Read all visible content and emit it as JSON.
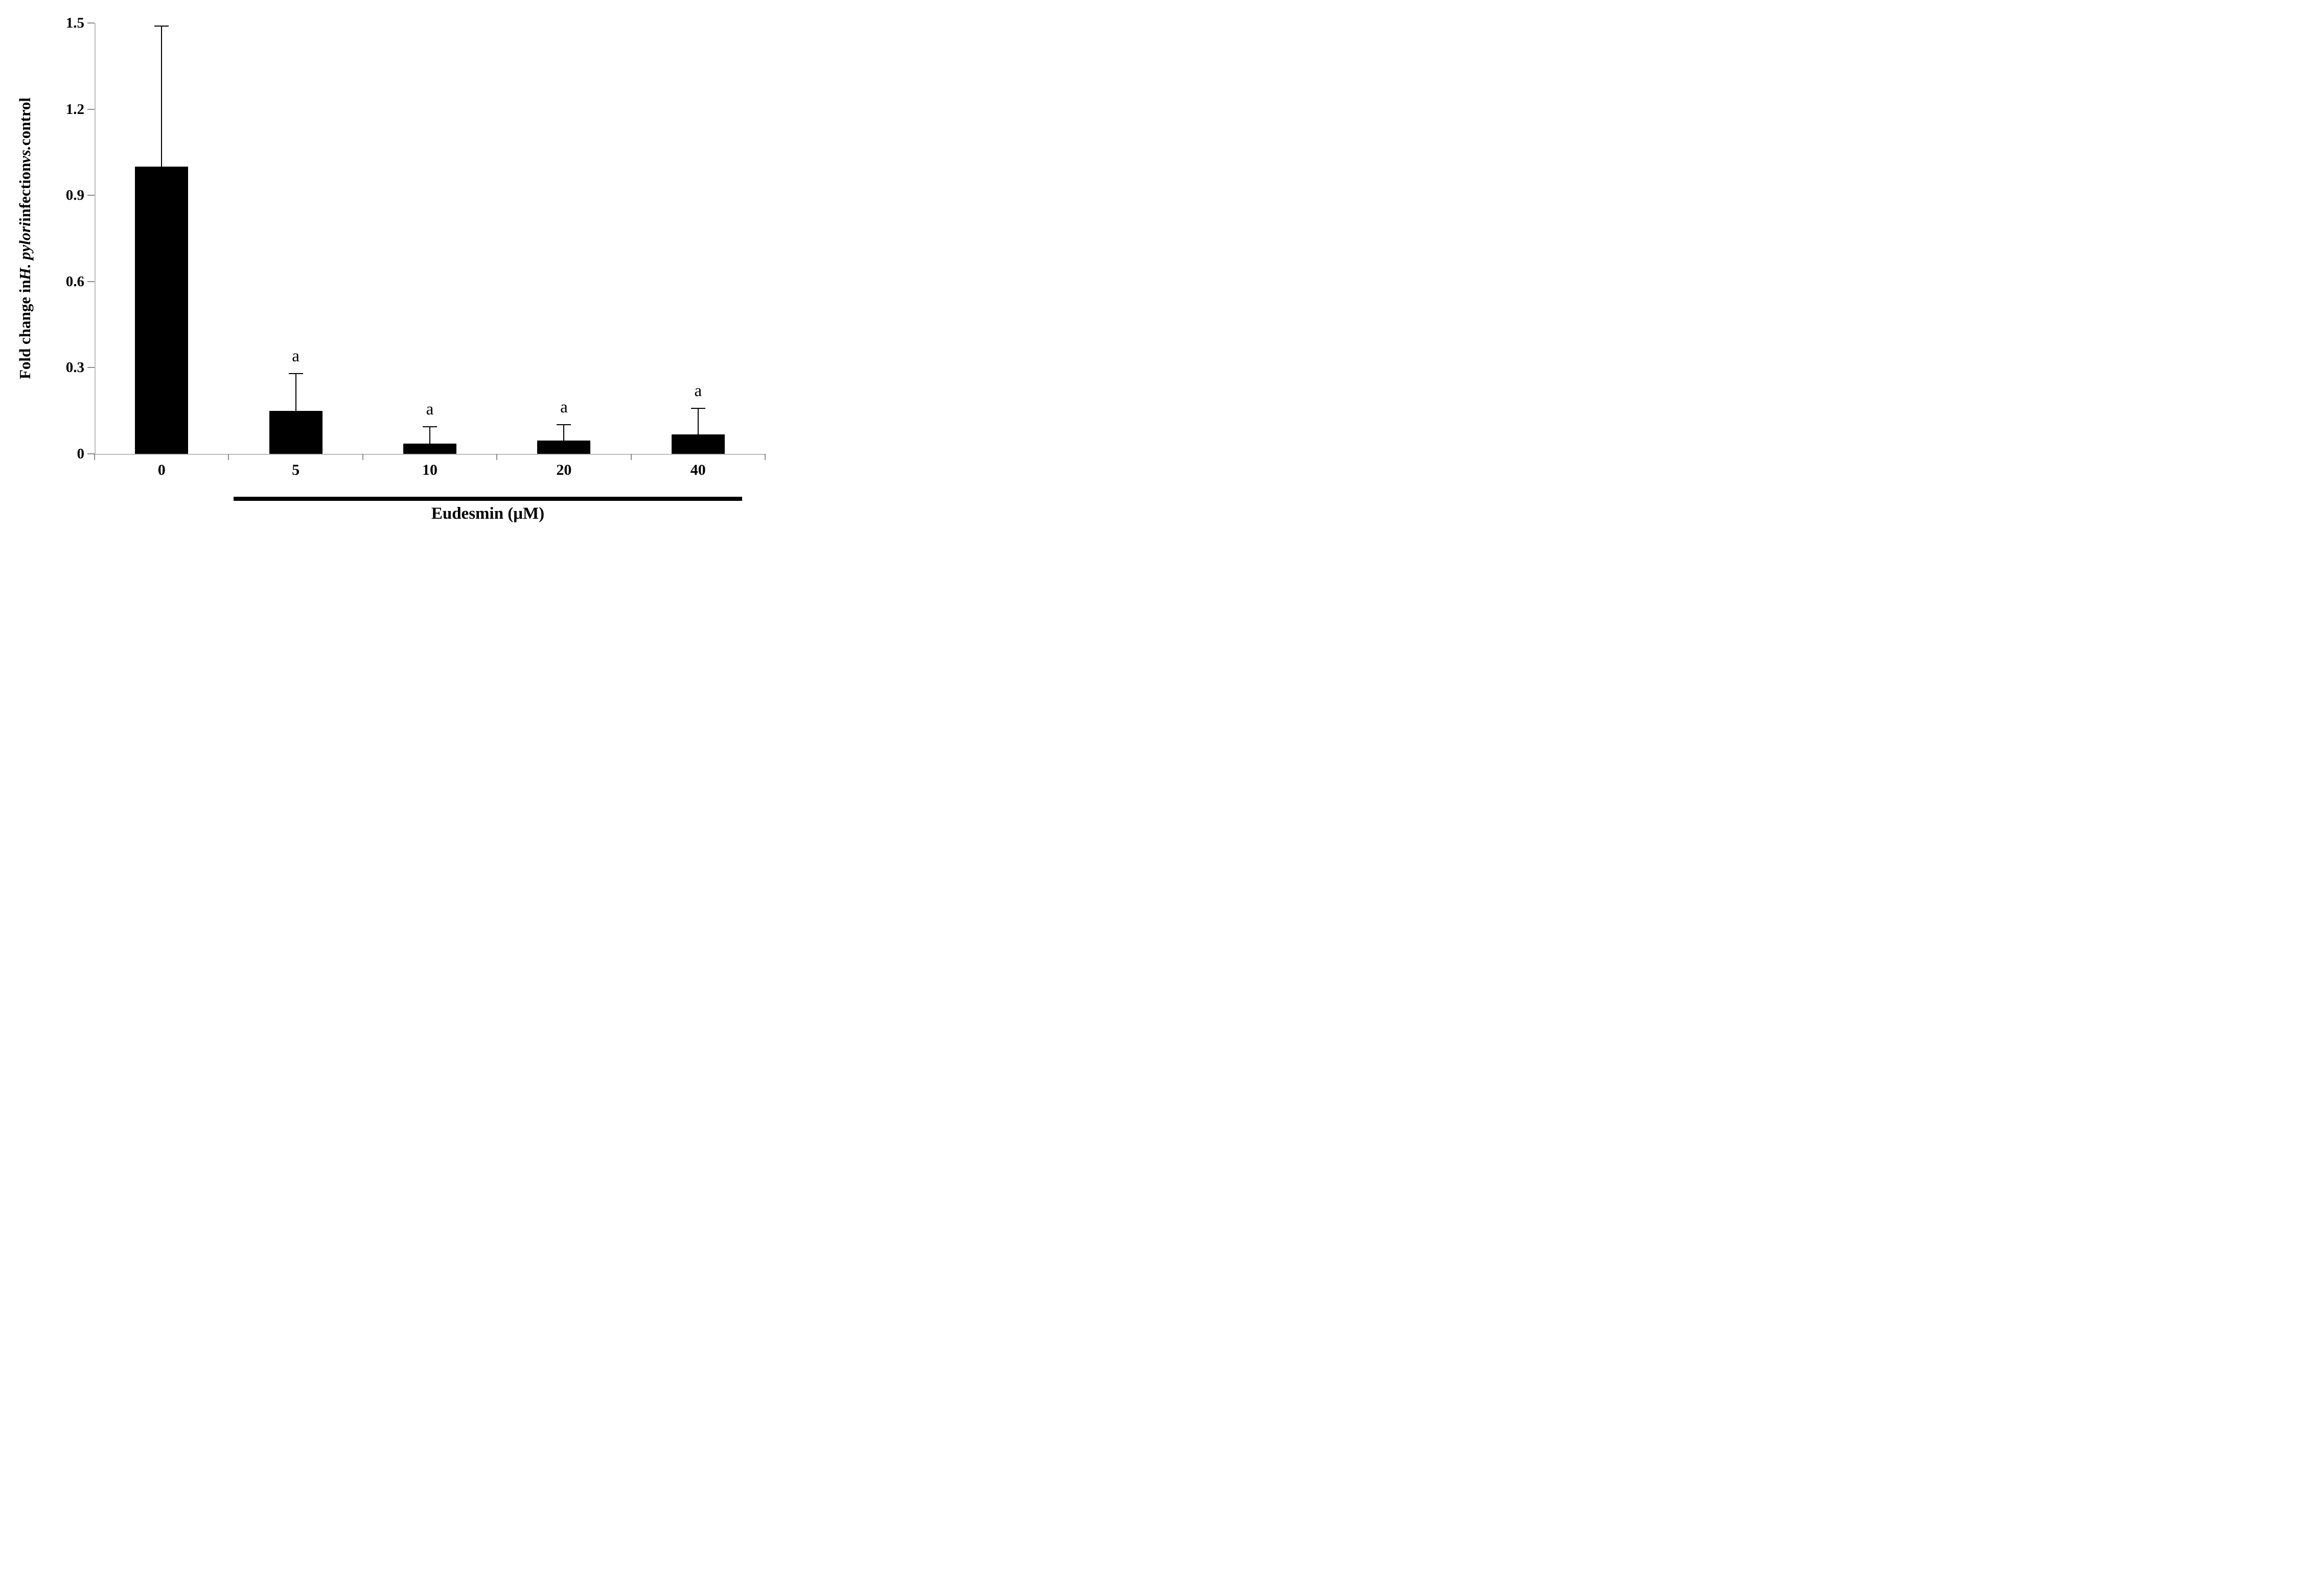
{
  "figure": {
    "background": "#ffffff"
  },
  "chart_data": {
    "type": "bar",
    "title": "",
    "xlabel": "Eudesmin (μM)",
    "ylabel": "Fold change in H. pylori infection vs. control",
    "ylabel_parts": [
      {
        "text": "Fold change in ",
        "italic": false
      },
      {
        "text": "H. pylori",
        "italic": true
      },
      {
        "text": " infection ",
        "italic": false
      },
      {
        "text": "vs.",
        "italic": true
      },
      {
        "text": " control",
        "italic": false
      }
    ],
    "categories": [
      "0",
      "5",
      "10",
      "20",
      "40"
    ],
    "values": [
      1.0,
      0.15,
      0.035,
      0.047,
      0.068
    ],
    "errors_up": [
      0.49,
      0.13,
      0.06,
      0.055,
      0.09
    ],
    "significance_labels": [
      "",
      "a",
      "a",
      "a",
      "a"
    ],
    "yticks": [
      {
        "label": "0",
        "value": 0
      },
      {
        "label": "0.3",
        "value": 0.3
      },
      {
        "label": "0.6",
        "value": 0.6
      },
      {
        "label": "0.9",
        "value": 0.9
      },
      {
        "label": "1.2",
        "value": 1.2
      },
      {
        "label": "1.5",
        "value": 1.5
      }
    ],
    "ylim": [
      0,
      1.5
    ],
    "grid": false,
    "legend": false,
    "bar_color": "#000000",
    "axis_color": "#bdbdbd",
    "treatment_group": {
      "start_category": "5",
      "end_category": "40",
      "underline": true,
      "label": "Eudesmin (μM)"
    }
  }
}
